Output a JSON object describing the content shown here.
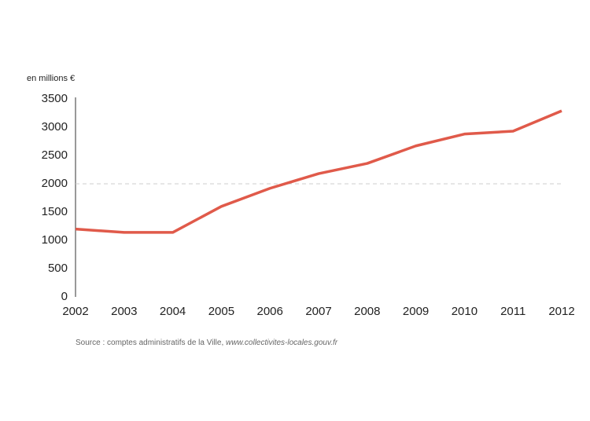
{
  "chart_data": {
    "type": "line",
    "y_axis_label": "en millions €",
    "x": [
      2002,
      2003,
      2004,
      2005,
      2006,
      2007,
      2008,
      2009,
      2010,
      2011,
      2012
    ],
    "xlim": [
      2002,
      2012
    ],
    "series": [
      {
        "color": "#e05a4a",
        "values": [
          1200,
          1140,
          1140,
          1600,
          1920,
          2180,
          2360,
          2670,
          2880,
          2930,
          3290
        ]
      }
    ],
    "ylim": [
      0,
      3500
    ],
    "yticks": [
      0,
      500,
      1000,
      1500,
      2000,
      2500,
      3000,
      3500
    ],
    "reference_line": 2000,
    "source": "Source : comptes administratifs de la Ville, ",
    "source_url": "www.collectivites-locales.gouv.fr"
  }
}
